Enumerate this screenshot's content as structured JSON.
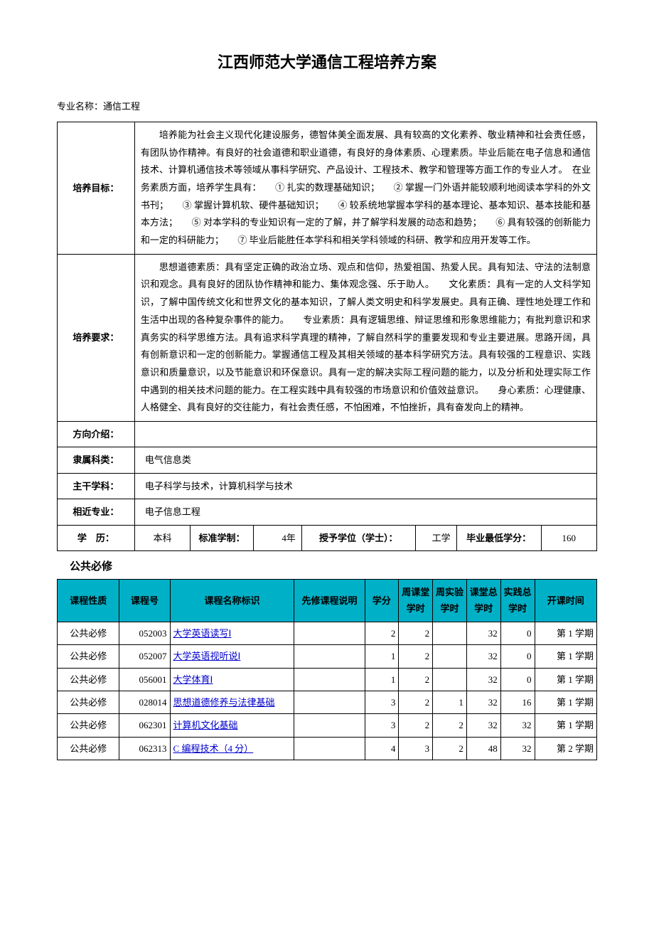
{
  "title": "江西师范大学通信工程培养方案",
  "major_label": "专业名称：",
  "major_name": "通信工程",
  "info": {
    "goal_label": "培养目标：",
    "goal_text": "培养能为社会主义现代化建设服务，德智体美全面发展、具有较高的文化素养、敬业精神和社会责任感，有团队协作精神。有良好的社会道德和职业道德，有良好的身体素质、心理素质。毕业后能在电子信息和通信技术、计算机通信技术等领域从事科学研究、产品设计、工程技术、教学和管理等方面工作的专业人才。　在业务素质方面，培养学生具有：　　① 扎实的数理基础知识；　　② 掌握一门外语并能较顺利地阅读本学科的外文书刊；　　③ 掌握计算机软、硬件基础知识；　　④ 较系统地掌握本学科的基本理论、基本知识、基本技能和基本方法；　　⑤ 对本学科的专业知识有一定的了解，并了解学科发展的动态和趋势；　　⑥ 具有较强的创新能力和一定的科研能力；　　⑦ 毕业后能胜任本学科和相关学科领域的科研、教学和应用开发等工作。",
    "req_label": "培养要求：",
    "req_text": "思想道德素质：具有坚定正确的政治立场、观点和信仰，热爱祖国、热爱人民。具有知法、守法的法制意识和观念。具有良好的团队协作精神和能力、集体观念强、乐于助人。　　文化素质：具有一定的人文科学知识，了解中国传统文化和世界文化的基本知识，了解人类文明史和科学发展史。具有正确、理性地处理工作和生活中出现的各种复杂事件的能力。　　专业素质：具有逻辑思维、辩证思维和形象思维能力；有批判意识和求真务实的科学思维方法。具有追求科学真理的精神，了解自然科学的重要发现和专业主要进展。思路开阔，具有创新意识和一定的创新能力。掌握通信工程及其相关领域的基本科学研究方法。具有较强的工程意识、实践意识和质量意识，以及节能意识和环保意识。具有一定的解决实际工程问题的能力，以及分析和处理实际工作中遇到的相关技术问题的能力。在工程实践中具有较强的市场意识和价值效益意识。　　身心素质：心理健康、人格健全、具有良好的交往能力，有社会责任感，不怕困难，不怕挫折，具有奋发向上的精神。",
    "direction_label": "方向介绍：",
    "direction_text": "",
    "category_label": "隶属科类：",
    "category_text": "电气信息类",
    "main_subject_label": "主干学科：",
    "main_subject_text": "电子科学与技术，计算机科学与技术",
    "similar_major_label": "相近专业：",
    "similar_major_text": "电子信息工程",
    "degree_row": {
      "edu_label": "学　历：",
      "edu_val": "本科",
      "std_label": "标准学制：",
      "std_val": "4年",
      "degree_label": "授予学位（学士）：",
      "degree_val": "工学",
      "min_credit_label": "毕业最低学分：",
      "min_credit_val": "160"
    }
  },
  "course_section_title": "公共必修",
  "course_headers": {
    "type": "课程性质",
    "num": "课程号",
    "name": "课程名称标识",
    "pre": "先修课程说明",
    "credit": "学分",
    "week_hours": "周课堂学时",
    "week_lab": "周实验学时",
    "total_hours": "课堂总学时",
    "practice_hours": "实践总学时",
    "term": "开课时间"
  },
  "courses": [
    {
      "type": "公共必修",
      "num": "052003",
      "name": "大学英语读写Ⅰ",
      "pre": "",
      "credit": "2",
      "wh": "2",
      "wl": "",
      "th": "32",
      "ph": "0",
      "term": "第 1 学期"
    },
    {
      "type": "公共必修",
      "num": "052007",
      "name": "大学英语视听说Ⅰ",
      "pre": "",
      "credit": "1",
      "wh": "2",
      "wl": "",
      "th": "32",
      "ph": "0",
      "term": "第 1 学期"
    },
    {
      "type": "公共必修",
      "num": "056001",
      "name": "大学体育Ⅰ",
      "pre": "",
      "credit": "1",
      "wh": "2",
      "wl": "",
      "th": "32",
      "ph": "0",
      "term": "第 1 学期"
    },
    {
      "type": "公共必修",
      "num": "028014",
      "name": "思想道德修养与法律基础",
      "pre": "",
      "credit": "3",
      "wh": "2",
      "wl": "1",
      "th": "32",
      "ph": "16",
      "term": "第 1 学期"
    },
    {
      "type": "公共必修",
      "num": "062301",
      "name": "计算机文化基础",
      "pre": "",
      "credit": "3",
      "wh": "2",
      "wl": "2",
      "th": "32",
      "ph": "32",
      "term": "第 1 学期"
    },
    {
      "type": "公共必修",
      "num": "062313",
      "name": "C 编程技术（4 分）",
      "pre": "",
      "credit": "4",
      "wh": "3",
      "wl": "2",
      "th": "48",
      "ph": "32",
      "term": "第 2 学期"
    }
  ],
  "colors": {
    "header_bg": "#00b0c7",
    "link": "#0000cc",
    "border": "#000000",
    "text": "#000000",
    "background": "#ffffff"
  }
}
